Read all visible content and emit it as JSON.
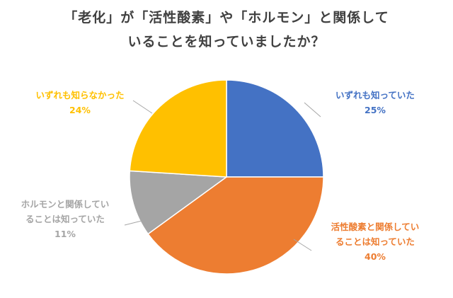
{
  "title": {
    "line1": "「老化」が「活性酸素」や「ホルモン」と関係して",
    "line2": "いることを知っていましたか？"
  },
  "chart_data": {
    "type": "pie",
    "title": "「老化」が「活性酸素」や「ホルモン」と関係していることを知っていましたか？",
    "start_angle_deg": 0,
    "direction": "clockwise",
    "slices": [
      {
        "label_lines": [
          "いずれも知っていた"
        ],
        "value": 25,
        "value_label": "25%",
        "color": "#4472C4"
      },
      {
        "label_lines": [
          "活性酸素と関係してい",
          "ることは知っていた"
        ],
        "value": 40,
        "value_label": "40%",
        "color": "#ED7D31"
      },
      {
        "label_lines": [
          "ホルモンと関係してい",
          "ることは知っていた"
        ],
        "value": 11,
        "value_label": "11%",
        "color": "#A5A5A5"
      },
      {
        "label_lines": [
          "いずれも知らなかった"
        ],
        "value": 24,
        "value_label": "24%",
        "color": "#FFC000"
      }
    ]
  }
}
